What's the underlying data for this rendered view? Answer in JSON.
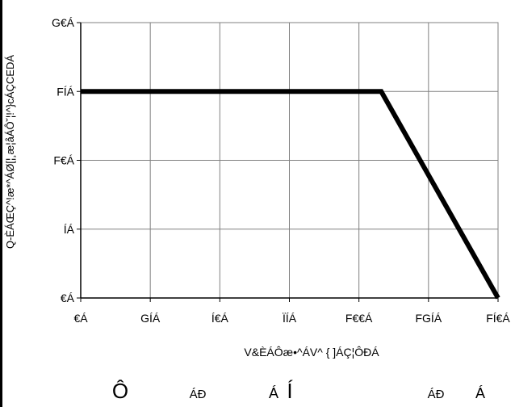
{
  "chart_data": {
    "type": "line",
    "xlabel": "V&ÈÁÔæ•^ÁV^ { ]ÁÇ¦ÔÐÁ",
    "ylabel": "Q-ÈÁŒÇ^!æ*^ÁØ[¦¸æ¦åÁÔ˘¦!^}cÁÇCEDÁ",
    "x_ticks": [
      {
        "value": 0,
        "label": "€Á"
      },
      {
        "value": 25,
        "label": "GÍÁ"
      },
      {
        "value": 50,
        "label": "Í€Á"
      },
      {
        "value": 75,
        "label": "ÏÍÁ"
      },
      {
        "value": 100,
        "label": "F€€Á"
      },
      {
        "value": 125,
        "label": "FGÍÁ"
      },
      {
        "value": 150,
        "label": "FÍ€Á"
      }
    ],
    "y_ticks": [
      {
        "value": 0,
        "label": "€Á"
      },
      {
        "value": 5,
        "label": "ÍÁ"
      },
      {
        "value": 10,
        "label": "F€Á"
      },
      {
        "value": 15,
        "label": "FÍÁ"
      },
      {
        "value": 20,
        "label": "G€Á"
      }
    ],
    "xlim": [
      0,
      150
    ],
    "ylim": [
      0,
      20
    ],
    "grid": true,
    "series": [
      {
        "x": [
          0,
          108,
          150
        ],
        "y": [
          15,
          15,
          0
        ]
      }
    ]
  },
  "footer": [
    "Ô",
    "ÁÐ",
    "Á",
    "Í",
    "ÁÐ",
    "Á"
  ],
  "colors": {
    "line": "#000000",
    "grid": "#808080",
    "axis": "#000000"
  }
}
